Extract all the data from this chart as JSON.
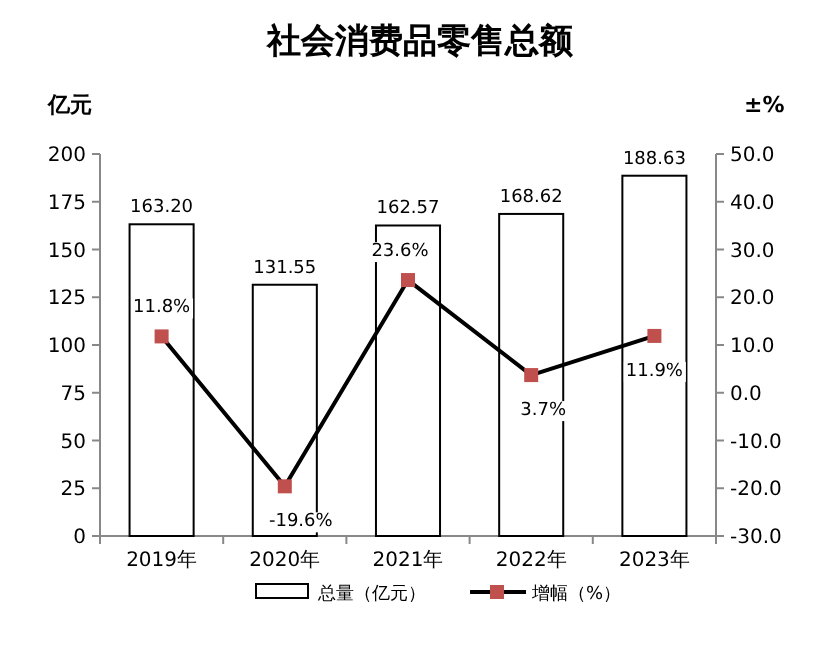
{
  "chart_data": {
    "type": "bar",
    "title": "社会消费品零售总额",
    "ylabel": "亿元",
    "y2label": "±%",
    "categories": [
      "2019年",
      "2020年",
      "2021年",
      "2022年",
      "2023年"
    ],
    "series": [
      {
        "name": "总量（亿元）",
        "color": "#ffffff",
        "values": [
          163.2,
          131.55,
          162.57,
          168.62,
          188.63
        ],
        "value_labels": [
          "163.20",
          "131.55",
          "162.57",
          "168.62",
          "188.63"
        ]
      },
      {
        "name": "增幅（%）",
        "type": "line",
        "axis": "y2",
        "color": "#000000",
        "colors": [
          "#c0504d",
          "#c0504d",
          "#c0504d",
          "#c0504d",
          "#c0504d"
        ],
        "marker": "square",
        "values": [
          11.8,
          -19.6,
          23.6,
          3.7,
          11.9
        ],
        "value_labels": [
          "11.8%",
          "-19.6%",
          "23.6%",
          "3.7%",
          "11.9%"
        ]
      }
    ],
    "ylim": [
      0,
      200
    ],
    "yticks": [
      0,
      25,
      50,
      75,
      100,
      125,
      150,
      175,
      200
    ],
    "y2lim": [
      -30,
      50
    ],
    "y2ticks": [
      {
        "value": -30,
        "label": "-30.0"
      },
      {
        "value": -20,
        "label": "-20.0"
      },
      {
        "value": -10,
        "label": "-10.0"
      },
      {
        "value": 0,
        "label": "0.0"
      },
      {
        "value": 10,
        "label": "10.0"
      },
      {
        "value": 20,
        "label": "20.0"
      },
      {
        "value": 30,
        "label": "30.0"
      },
      {
        "value": 40,
        "label": "40.0"
      },
      {
        "value": 50,
        "label": "50.0"
      }
    ],
    "grid": false,
    "legend": "bottom"
  }
}
